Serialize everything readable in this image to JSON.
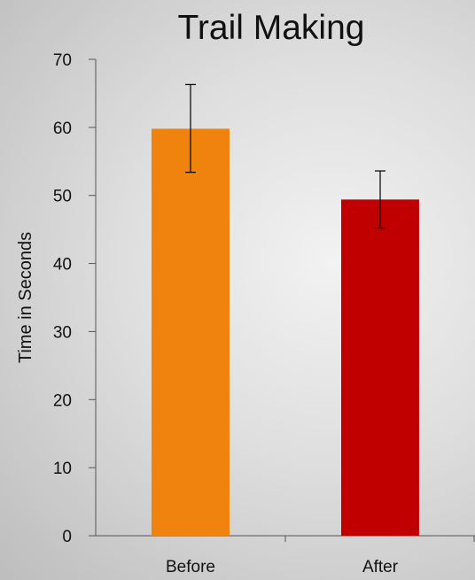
{
  "chart_data": {
    "type": "bar",
    "title": "Trail Making",
    "ylabel": "Time in Seconds",
    "xlabel": "",
    "categories": [
      "Before",
      "After"
    ],
    "values": [
      59.8,
      49.4
    ],
    "error_low": [
      53.4,
      45.2
    ],
    "error_high": [
      66.3,
      53.6
    ],
    "colors": [
      "#f0820e",
      "#c00000"
    ],
    "ylim": [
      0,
      70
    ],
    "yticks": [
      0,
      10,
      20,
      30,
      40,
      50,
      60,
      70
    ],
    "grid": false
  }
}
